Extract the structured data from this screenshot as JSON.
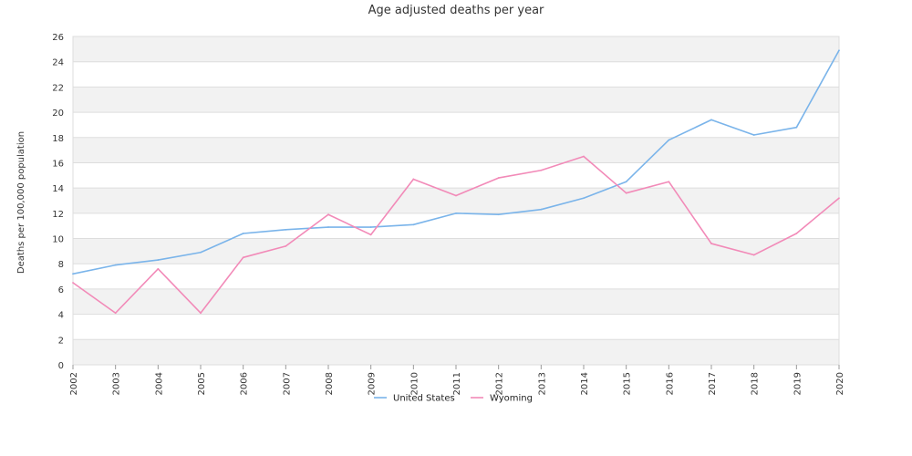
{
  "chart_data": {
    "type": "line",
    "title": "Age adjusted deaths per year",
    "xlabel": "",
    "ylabel": "Deaths per 100,000 population",
    "categories": [
      "2002",
      "2003",
      "2004",
      "2005",
      "2006",
      "2007",
      "2008",
      "2009",
      "2010",
      "2011",
      "2012",
      "2013",
      "2014",
      "2015",
      "2016",
      "2017",
      "2018",
      "2019",
      "2020"
    ],
    "ylim": [
      0,
      26
    ],
    "yticks": [
      0,
      2,
      4,
      6,
      8,
      10,
      12,
      14,
      16,
      18,
      20,
      22,
      24,
      26
    ],
    "grid": "alternating horizontal bands",
    "legend_position": "bottom-center",
    "series": [
      {
        "name": "United States",
        "color": "#7ab4ea",
        "values": [
          7.2,
          7.9,
          8.3,
          8.9,
          10.4,
          10.7,
          10.9,
          10.9,
          11.1,
          12.0,
          11.9,
          12.3,
          13.2,
          14.5,
          17.8,
          19.4,
          18.2,
          18.8,
          24.9
        ]
      },
      {
        "name": "Wyoming",
        "color": "#f28ab8",
        "values": [
          6.5,
          4.1,
          7.6,
          4.1,
          8.5,
          9.4,
          11.9,
          10.3,
          14.7,
          13.4,
          14.8,
          15.4,
          16.5,
          13.6,
          14.5,
          9.6,
          8.7,
          10.4,
          13.2
        ]
      }
    ],
    "band_colors": [
      "#ffffff",
      "#f2f2f2"
    ],
    "gridline_color": "#dddddd"
  }
}
